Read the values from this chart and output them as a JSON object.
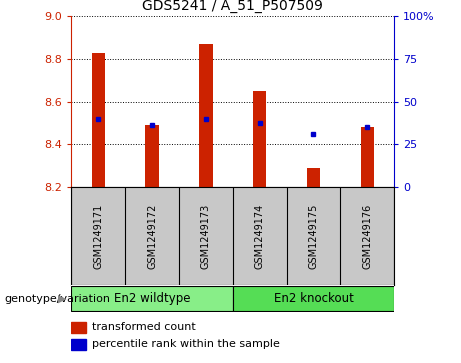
{
  "title": "GDS5241 / A_51_P507509",
  "samples": [
    "GSM1249171",
    "GSM1249172",
    "GSM1249173",
    "GSM1249174",
    "GSM1249175",
    "GSM1249176"
  ],
  "bar_values": [
    8.83,
    8.49,
    8.87,
    8.65,
    8.29,
    8.48
  ],
  "bar_base": 8.2,
  "percentile_values": [
    8.52,
    8.49,
    8.52,
    8.5,
    8.45,
    8.48
  ],
  "ylim_left": [
    8.2,
    9.0
  ],
  "ylim_right": [
    0,
    100
  ],
  "yticks_left": [
    8.2,
    8.4,
    8.6,
    8.8,
    9.0
  ],
  "yticks_right": [
    0,
    25,
    50,
    75,
    100
  ],
  "bar_color": "#cc2200",
  "dot_color": "#0000cc",
  "group1_label": "En2 wildtype",
  "group2_label": "En2 knockout",
  "group1_color": "#88ee88",
  "group2_color": "#55dd55",
  "group_bg_color": "#88ee88",
  "group1_indices": [
    0,
    1,
    2
  ],
  "group2_indices": [
    3,
    4,
    5
  ],
  "legend_bar_label": "transformed count",
  "legend_dot_label": "percentile rank within the sample",
  "xlabel_annot": "genotype/variation",
  "xlabels_bg": "#c8c8c8",
  "left_spine_color": "#cc2200",
  "right_spine_color": "#0000cc"
}
